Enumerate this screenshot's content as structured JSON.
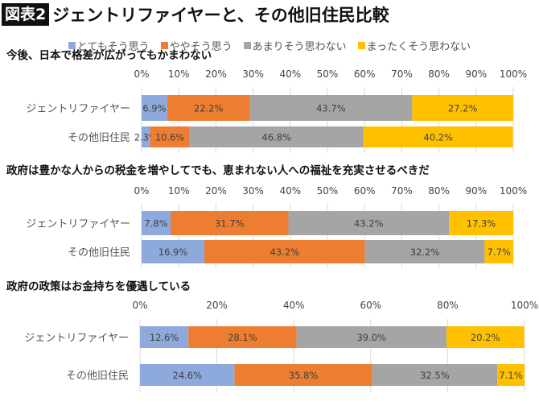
{
  "header": {
    "badge": "図表2",
    "title": "ジェントリファイヤーと、その他旧住民比較"
  },
  "colors": [
    "#8EA9DB",
    "#ED7D31",
    "#A5A5A5",
    "#FFC000"
  ],
  "legend": [
    "とてもそう思う",
    "ややそう思う",
    "あまりそう思わない",
    "まったくそう思わない"
  ],
  "chart_data": [
    {
      "type": "bar",
      "stacked": true,
      "orientation": "horizontal",
      "title": "今後、日本で格差が広がってもかまわない",
      "categories": [
        "ジェントリファイヤー",
        "その他旧住民"
      ],
      "xticks": [
        "0%",
        "10%",
        "20%",
        "30%",
        "40%",
        "50%",
        "60%",
        "70%",
        "80%",
        "90%",
        "100%"
      ],
      "xlim": [
        0,
        100
      ],
      "series": [
        {
          "name": "とてもそう思う",
          "values": [
            6.9,
            2.3
          ],
          "labels": [
            "6.9%",
            "2.3%"
          ]
        },
        {
          "name": "ややそう思う",
          "values": [
            22.2,
            10.6
          ],
          "labels": [
            "22.2%",
            "10.6%"
          ]
        },
        {
          "name": "あまりそう思わない",
          "values": [
            43.7,
            46.8
          ],
          "labels": [
            "43.7%",
            "46.8%"
          ]
        },
        {
          "name": "まったくそう思わない",
          "values": [
            27.2,
            40.2
          ],
          "labels": [
            "27.2%",
            "40.2%"
          ]
        }
      ]
    },
    {
      "type": "bar",
      "stacked": true,
      "orientation": "horizontal",
      "title": "政府は豊かな人からの税金を増やしてでも、恵まれない人への福祉を充実させるべきだ",
      "categories": [
        "ジェントリファイヤー",
        "その他旧住民"
      ],
      "xticks": [
        "0%",
        "10%",
        "20%",
        "30%",
        "40%",
        "50%",
        "60%",
        "70%",
        "80%",
        "90%",
        "100%"
      ],
      "xlim": [
        0,
        100
      ],
      "series": [
        {
          "name": "とてもそう思う",
          "values": [
            7.8,
            16.9
          ],
          "labels": [
            "7.8%",
            "16.9%"
          ]
        },
        {
          "name": "ややそう思う",
          "values": [
            31.7,
            43.2
          ],
          "labels": [
            "31.7%",
            "43.2%"
          ]
        },
        {
          "name": "あまりそう思わない",
          "values": [
            43.2,
            32.2
          ],
          "labels": [
            "43.2%",
            "32.2%"
          ]
        },
        {
          "name": "まったくそう思わない",
          "values": [
            17.3,
            7.7
          ],
          "labels": [
            "17.3%",
            "7.7%"
          ]
        }
      ]
    },
    {
      "type": "bar",
      "stacked": true,
      "orientation": "horizontal",
      "title": "政府の政策はお金持ちを優遇している",
      "categories": [
        "ジェントリファイヤー",
        "その他旧住民"
      ],
      "xticks": [
        "0%",
        "20%",
        "40%",
        "60%",
        "80%",
        "100%"
      ],
      "xlim": [
        0,
        100
      ],
      "series": [
        {
          "name": "とてもそう思う",
          "values": [
            12.6,
            24.6
          ],
          "labels": [
            "12.6%",
            "24.6%"
          ]
        },
        {
          "name": "ややそう思う",
          "values": [
            28.1,
            35.8
          ],
          "labels": [
            "28.1%",
            "35.8%"
          ]
        },
        {
          "name": "あまりそう思わない",
          "values": [
            39.0,
            32.5
          ],
          "labels": [
            "39.0%",
            "32.5%"
          ]
        },
        {
          "name": "まったくそう思わない",
          "values": [
            20.2,
            7.1
          ],
          "labels": [
            "20.2%",
            "7.1%"
          ]
        }
      ]
    }
  ]
}
